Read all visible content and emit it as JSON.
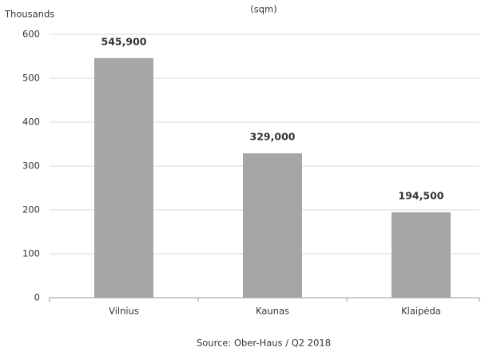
{
  "chart_data": {
    "type": "bar",
    "title": "(sqm)",
    "y_label": "Thousands",
    "source": "Source: Ober-Haus  / Q2 2018",
    "categories": [
      "Vilnius",
      "Kaunas",
      "Klaipėda"
    ],
    "values": [
      545.9,
      329,
      194.5
    ],
    "value_labels": [
      "545,900",
      "329,000",
      "194,500"
    ],
    "color": "#a6a6a6",
    "ylim": [
      0,
      600
    ],
    "yticks": [
      0,
      100,
      200,
      300,
      400,
      500,
      600
    ],
    "grid": true
  }
}
